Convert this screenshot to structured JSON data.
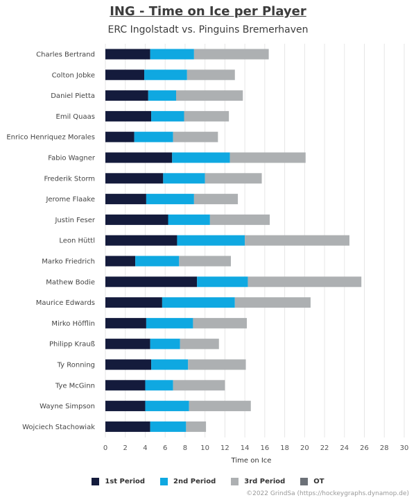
{
  "title": "ING - Time on Ice per Player",
  "subtitle": "ERC Ingolstadt vs. Pinguins Bremerhaven",
  "credit": "©2022 GrindSa (https://hockeygraphs.dynamop.de)",
  "chart_data": {
    "type": "bar",
    "orientation": "horizontal",
    "stacked": true,
    "xlabel": "Time on Ice",
    "xlim": [
      0,
      30
    ],
    "xticks": [
      0,
      2,
      4,
      6,
      8,
      10,
      12,
      14,
      16,
      18,
      20,
      22,
      24,
      26,
      28,
      30
    ],
    "grid": true,
    "legend_position": "bottom",
    "categories": [
      "Charles Bertrand",
      "Colton Jobke",
      "Daniel Pietta",
      "Emil Quaas",
      "Enrico Henriquez Morales",
      "Fabio Wagner",
      "Frederik Storm",
      "Jerome Flaake",
      "Justin Feser",
      "Leon Hüttl",
      "Marko Friedrich",
      "Mathew Bodie",
      "Maurice Edwards",
      "Mirko Höfflin",
      "Philipp Krauß",
      "Ty Ronning",
      "Tye McGinn",
      "Wayne Simpson",
      "Wojciech Stachowiak"
    ],
    "series": [
      {
        "name": "1st Period",
        "color": "#141b3c",
        "values": [
          4.5,
          3.9,
          4.3,
          4.6,
          2.9,
          6.7,
          5.8,
          4.1,
          6.3,
          7.2,
          3.0,
          9.2,
          5.7,
          4.1,
          4.5,
          4.6,
          4.0,
          4.0,
          4.5
        ]
      },
      {
        "name": "2nd Period",
        "color": "#0fa8e1",
        "values": [
          4.4,
          4.3,
          2.8,
          3.3,
          3.9,
          5.8,
          4.2,
          4.8,
          4.2,
          6.8,
          4.4,
          5.1,
          7.3,
          4.7,
          3.0,
          3.7,
          2.8,
          4.4,
          3.6
        ]
      },
      {
        "name": "3rd Period",
        "color": "#adb0b2",
        "values": [
          7.5,
          4.8,
          6.7,
          4.5,
          4.5,
          7.6,
          5.7,
          4.4,
          6.0,
          10.5,
          5.2,
          11.4,
          7.6,
          5.4,
          3.9,
          5.8,
          5.2,
          6.2,
          2.0
        ]
      },
      {
        "name": "OT",
        "color": "#6c7178",
        "values": [
          0,
          0,
          0,
          0,
          0,
          0,
          0,
          0,
          0,
          0,
          0,
          0,
          0,
          0,
          0,
          0,
          0,
          0,
          0
        ]
      }
    ]
  }
}
